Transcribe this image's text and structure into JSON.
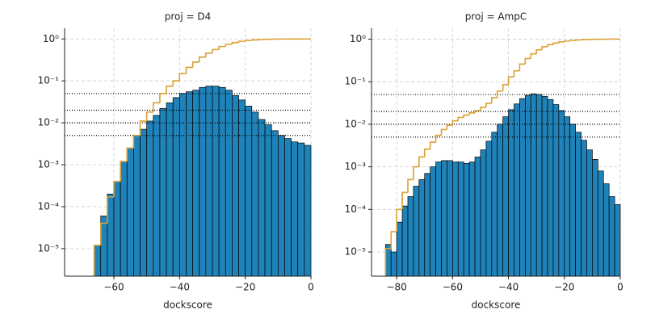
{
  "chart_data": [
    {
      "type": "histogram",
      "title": "proj = D4",
      "xlabel": "dockscore",
      "xlim": [
        -75,
        0
      ],
      "ylim": [
        2.2e-06,
        1.8
      ],
      "yscale": "log",
      "grid": true,
      "xticks": [
        {
          "value": -60,
          "label": "−60"
        },
        {
          "value": -40,
          "label": "−40"
        },
        {
          "value": -20,
          "label": "−20"
        },
        0
      ],
      "yticks": [
        {
          "value": 1e-05,
          "label": "10⁻⁵"
        },
        {
          "value": 0.0001,
          "label": "10⁻⁴"
        },
        {
          "value": 0.001,
          "label": "10⁻³"
        },
        {
          "value": 0.01,
          "label": "10⁻²"
        },
        {
          "value": 0.1,
          "label": "10⁻¹"
        },
        {
          "value": 1,
          "label": "10⁰"
        }
      ],
      "bins": [
        -66,
        -64,
        -62,
        -60,
        -58,
        -56,
        -54,
        -52,
        -50,
        -48,
        -46,
        -44,
        -42,
        -40,
        -38,
        -36,
        -34,
        -32,
        -30,
        -28,
        -26,
        -24,
        -22,
        -20,
        -18,
        -16,
        -14,
        -12,
        -10,
        -8,
        -6,
        -4,
        -2,
        0
      ],
      "values": [
        1.2e-05,
        6e-05,
        0.0002,
        0.0004,
        0.0012,
        0.0025,
        0.005,
        0.007,
        0.011,
        0.015,
        0.022,
        0.03,
        0.04,
        0.05,
        0.055,
        0.06,
        0.07,
        0.075,
        0.075,
        0.07,
        0.06,
        0.045,
        0.035,
        0.025,
        0.018,
        0.012,
        0.009,
        0.0065,
        0.005,
        0.0042,
        0.0035,
        0.0033,
        0.0029
      ],
      "color": "#1f83b9",
      "edgecolor": "#000000",
      "line": {
        "color": "#daa033",
        "values": [
          1.2e-05,
          4e-05,
          0.00017,
          0.0004,
          0.0012,
          0.0025,
          0.005,
          0.011,
          0.018,
          0.03,
          0.05,
          0.075,
          0.1,
          0.15,
          0.21,
          0.28,
          0.37,
          0.46,
          0.56,
          0.66,
          0.75,
          0.82,
          0.88,
          0.92,
          0.95,
          0.97,
          0.98,
          0.99,
          0.995,
          0.997,
          0.998,
          0.999,
          1.0
        ]
      },
      "hlines": [
        0.05,
        0.02,
        0.01,
        0.005
      ]
    },
    {
      "type": "histogram",
      "title": "proj = AmpC",
      "xlabel": "dockscore",
      "xlim": [
        -89,
        0
      ],
      "ylim": [
        2.7e-06,
        1.8
      ],
      "yscale": "log",
      "grid": true,
      "xticks": [
        {
          "value": -80,
          "label": "−80"
        },
        {
          "value": -60,
          "label": "−60"
        },
        {
          "value": -40,
          "label": "−40"
        },
        {
          "value": -20,
          "label": "−20"
        },
        0
      ],
      "yticks": [
        {
          "value": 1e-05,
          "label": "10⁻⁵"
        },
        {
          "value": 0.0001,
          "label": "10⁻⁴"
        },
        {
          "value": 0.001,
          "label": "10⁻³"
        },
        {
          "value": 0.01,
          "label": "10⁻²"
        },
        {
          "value": 0.1,
          "label": "10⁻¹"
        },
        {
          "value": 1,
          "label": "10⁰"
        }
      ],
      "bins": [
        -84,
        -82,
        -80,
        -78,
        -76,
        -74,
        -72,
        -70,
        -68,
        -66,
        -64,
        -62,
        -60,
        -58,
        -56,
        -54,
        -52,
        -50,
        -48,
        -46,
        -44,
        -42,
        -40,
        -38,
        -36,
        -34,
        -32,
        -30,
        -28,
        -26,
        -24,
        -22,
        -20,
        -18,
        -16,
        -14,
        -12,
        -10,
        -8,
        -6,
        -4,
        -2,
        0
      ],
      "values": [
        1.5e-05,
        1e-05,
        5e-05,
        0.00012,
        0.0002,
        0.00035,
        0.0005,
        0.0007,
        0.001,
        0.0013,
        0.0014,
        0.0014,
        0.0013,
        0.0013,
        0.0012,
        0.0013,
        0.0017,
        0.0025,
        0.004,
        0.0065,
        0.01,
        0.015,
        0.022,
        0.03,
        0.04,
        0.048,
        0.052,
        0.05,
        0.045,
        0.038,
        0.029,
        0.021,
        0.015,
        0.01,
        0.0065,
        0.0042,
        0.0025,
        0.0015,
        0.0008,
        0.0004,
        0.0002,
        0.00013
      ],
      "color": "#1f83b9",
      "edgecolor": "#000000",
      "line": {
        "color": "#daa033",
        "values": [
          1.2e-05,
          3e-05,
          0.0001,
          0.00025,
          0.0005,
          0.001,
          0.0017,
          0.0026,
          0.0038,
          0.0055,
          0.0075,
          0.0095,
          0.012,
          0.0145,
          0.0165,
          0.0185,
          0.021,
          0.025,
          0.031,
          0.042,
          0.06,
          0.085,
          0.13,
          0.18,
          0.26,
          0.35,
          0.45,
          0.56,
          0.66,
          0.74,
          0.81,
          0.86,
          0.9,
          0.93,
          0.95,
          0.97,
          0.98,
          0.99,
          0.995,
          0.998,
          0.999,
          1.0
        ]
      },
      "hlines": [
        0.05,
        0.02,
        0.01,
        0.005
      ]
    }
  ]
}
